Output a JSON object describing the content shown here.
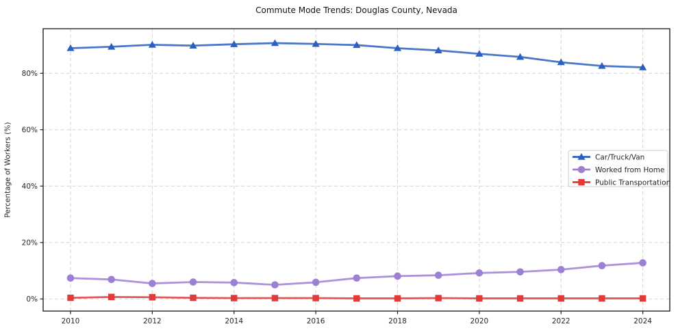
{
  "chart_data": {
    "type": "line",
    "title": "Commute Mode Trends: Douglas County, Nevada",
    "xlabel": "",
    "ylabel": "Percentage of Workers (%)",
    "x": [
      2010,
      2011,
      2012,
      2013,
      2014,
      2015,
      2016,
      2017,
      2018,
      2019,
      2020,
      2021,
      2022,
      2023,
      2024
    ],
    "series": [
      {
        "name": "Car/Truck/Van",
        "color": "#2C5FC0",
        "marker": "triangle",
        "values": [
          88.9,
          89.4,
          90.1,
          89.8,
          90.3,
          90.7,
          90.4,
          90.0,
          88.9,
          88.1,
          86.9,
          85.8,
          83.9,
          82.6,
          82.1
        ]
      },
      {
        "name": "Worked from Home",
        "color": "#9D7FD4",
        "marker": "circle",
        "values": [
          7.4,
          6.9,
          5.5,
          6.0,
          5.8,
          5.0,
          5.9,
          7.4,
          8.1,
          8.4,
          9.2,
          9.6,
          10.4,
          11.8,
          12.8
        ]
      },
      {
        "name": "Public Transportation",
        "color": "#E03A3A",
        "marker": "square",
        "values": [
          0.4,
          0.7,
          0.6,
          0.4,
          0.3,
          0.3,
          0.3,
          0.2,
          0.2,
          0.3,
          0.2,
          0.2,
          0.2,
          0.2,
          0.2
        ]
      }
    ],
    "xticks": [
      2010,
      2012,
      2014,
      2016,
      2018,
      2020,
      2022,
      2024
    ],
    "yticks": [
      {
        "value": 0,
        "label": "0%"
      },
      {
        "value": 20,
        "label": "20%"
      },
      {
        "value": 40,
        "label": "40%"
      },
      {
        "value": 60,
        "label": "60%"
      },
      {
        "value": 80,
        "label": "80%"
      }
    ],
    "xlim": [
      2009.33,
      2024.66
    ],
    "ylim": [
      -4.3,
      95.8
    ],
    "grid": true,
    "legend": {
      "position": "right-middle",
      "entries": [
        "Car/Truck/Van",
        "Worked from Home",
        "Public Transportation"
      ]
    }
  }
}
